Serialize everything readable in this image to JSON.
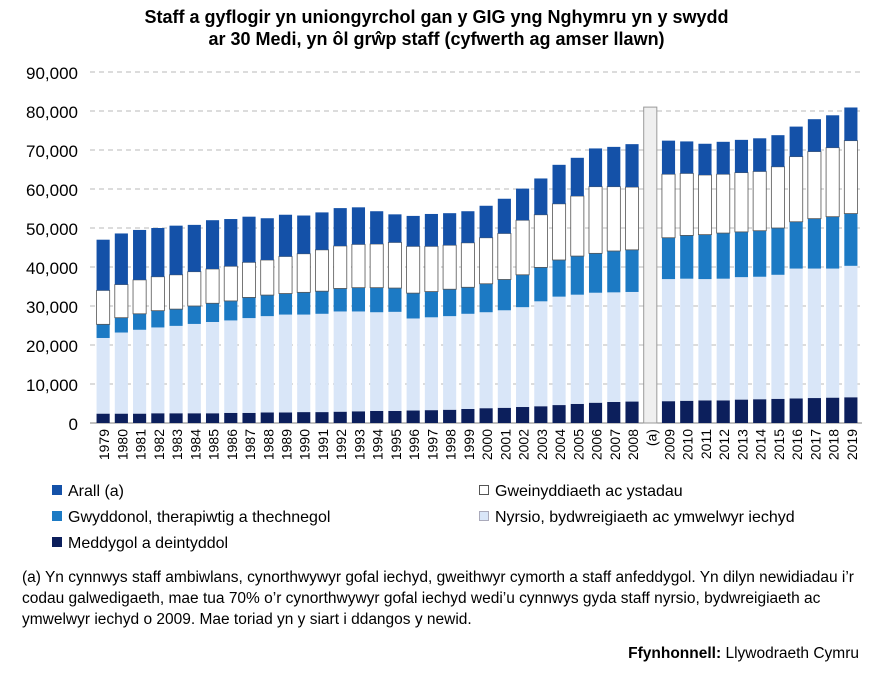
{
  "chart_data": {
    "type": "bar",
    "title_line1": "Staff a gyflogir yn uniongyrchol gan y GIG yng Nghymru yn y swydd",
    "title_line2": "ar 30 Medi, yn ôl grŵp staff (cyfwerth ag amser llawn)",
    "categories": [
      "1979",
      "1980",
      "1981",
      "1982",
      "1983",
      "1984",
      "1985",
      "1986",
      "1987",
      "1988",
      "1989",
      "1990",
      "1991",
      "1992",
      "1993",
      "1994",
      "1995",
      "1996",
      "1997",
      "1998",
      "1999",
      "2000",
      "2001",
      "2002",
      "2003",
      "2004",
      "2005",
      "2006",
      "2007",
      "2008",
      "(a)",
      "2009",
      "2010",
      "2011",
      "2012",
      "2013",
      "2014",
      "2015",
      "2016",
      "2017",
      "2018",
      "2019"
    ],
    "ylim": [
      0,
      90000
    ],
    "yticks": [
      "0",
      "10,000",
      "20,000",
      "30,000",
      "40,000",
      "50,000",
      "60,000",
      "70,000",
      "80,000",
      "90,000"
    ],
    "break_marker_value": 81000,
    "series": [
      {
        "name": "Meddygol a deintyddol",
        "color": "#0c1f5c",
        "values": [
          2400,
          2400,
          2400,
          2500,
          2500,
          2500,
          2500,
          2600,
          2600,
          2700,
          2700,
          2800,
          2800,
          2900,
          3000,
          3100,
          3100,
          3200,
          3300,
          3400,
          3600,
          3800,
          3900,
          4100,
          4300,
          4600,
          4900,
          5200,
          5400,
          5500,
          null,
          5600,
          5700,
          5800,
          5800,
          6000,
          6100,
          6200,
          6300,
          6400,
          6500,
          6600
        ]
      },
      {
        "name": "Nyrsio, bydwreigiaeth ac ymwelwyr iechyd",
        "color": "#d9e6f8",
        "values": [
          19400,
          20800,
          21500,
          22000,
          22400,
          22900,
          23400,
          23700,
          24300,
          24700,
          25100,
          25000,
          25200,
          25700,
          25600,
          25300,
          25400,
          23600,
          23800,
          24000,
          24400,
          24600,
          25000,
          25600,
          26900,
          27800,
          28000,
          28200,
          28100,
          28100,
          null,
          31300,
          31300,
          31100,
          31200,
          31400,
          31400,
          31800,
          33300,
          33200,
          33100,
          33700
        ]
      },
      {
        "name": "Gwyddonol, therapiwtig a thechnegol",
        "color": "#1c7ac4",
        "values": [
          3500,
          3800,
          4100,
          4300,
          4300,
          4600,
          4800,
          5000,
          5300,
          5400,
          5400,
          5700,
          5800,
          5900,
          6100,
          6300,
          6100,
          6500,
          6600,
          6900,
          6800,
          7300,
          7900,
          8300,
          8700,
          9400,
          9900,
          10100,
          10600,
          10800,
          null,
          10600,
          11100,
          11400,
          11700,
          11600,
          11800,
          12000,
          12000,
          12800,
          13300,
          13400
        ]
      },
      {
        "name": "Gweinyddiaeth ac ystadau",
        "color": "#ffffff",
        "values": [
          8700,
          8500,
          8700,
          8700,
          8800,
          8800,
          8800,
          8900,
          9000,
          9000,
          9500,
          9900,
          10600,
          10900,
          11100,
          11200,
          11700,
          12000,
          11600,
          11300,
          11400,
          11800,
          11800,
          14000,
          13500,
          14400,
          15400,
          17100,
          16500,
          16100,
          null,
          16300,
          15900,
          15300,
          15100,
          15200,
          15200,
          15700,
          16700,
          17200,
          17700,
          18700
        ]
      },
      {
        "name": "Arall (a)",
        "color": "#1451a8",
        "values": [
          13000,
          13100,
          12800,
          12500,
          12600,
          12000,
          12500,
          12100,
          11700,
          10700,
          10700,
          9800,
          9600,
          9700,
          9500,
          8400,
          7200,
          7800,
          8300,
          8200,
          8100,
          8200,
          8900,
          8100,
          9300,
          10000,
          9800,
          9800,
          10200,
          11000,
          null,
          8600,
          8200,
          8000,
          8300,
          8400,
          8500,
          8100,
          7700,
          8300,
          8300,
          8500
        ]
      }
    ],
    "legend_placement": "bottom"
  },
  "note": "(a) Yn cynnwys staff ambiwlans, cynorthwywyr gofal iechyd, gweithwyr cymorth a staff anfeddygol. Yn dilyn newidiadau i’r codau galwedigaeth, mae tua 70% o’r cynorthwywyr gofal iechyd wedi’u cynnwys gyda staff nyrsio, bydwreigiaeth ac ymwelwyr iechyd o 2009. Mae toriad yn y siart i ddangos y newid.",
  "source_label": "Ffynhonnell:",
  "source_value": "Llywodraeth Cymru"
}
